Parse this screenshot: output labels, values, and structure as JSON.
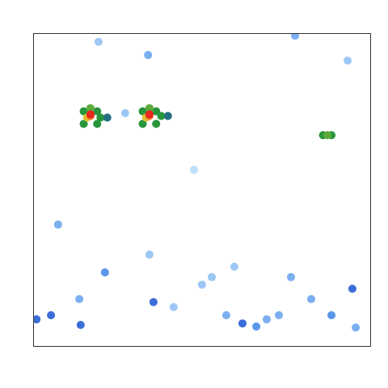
{
  "chart_data": {
    "type": "heatmap",
    "xlim": [
      0,
      100
    ],
    "ylim": [
      0,
      100
    ],
    "zlim": [
      0,
      1
    ],
    "tick_labels": false,
    "grid": false,
    "cells": {
      "x": [
        15,
        19,
        15,
        19,
        17,
        20,
        22,
        16,
        17,
        17,
        32.5,
        36.5,
        32.5,
        36.5,
        34.5,
        38,
        40,
        33.5,
        34.5,
        34.5,
        86,
        88.5,
        87.3,
        1.0,
        5.3,
        14.1,
        21.3,
        35.7,
        34.5,
        62.1,
        66.2,
        69.3,
        72.9,
        82.5,
        88.5,
        94.7,
        95.7,
        76.5,
        53.0,
        57.3,
        7.4,
        13.7,
        34.1,
        19.4,
        50.1,
        93.3,
        77.7,
        47.7,
        27.3,
        59.7,
        41.7
      ],
      "y": [
        71,
        71,
        75,
        75,
        76,
        73,
        73,
        73,
        73.5,
        74,
        71,
        71,
        75,
        75,
        76,
        73.5,
        73.5,
        73,
        73.5,
        74,
        67.4,
        67.4,
        67.4,
        8.5,
        9.8,
        6.7,
        23.5,
        14.0,
        29.2,
        7.2,
        6.2,
        8.5,
        9.8,
        15.0,
        9.8,
        18.3,
        5.9,
        22.0,
        22.0,
        9.8,
        38.8,
        15.0,
        93.0,
        97.2,
        19.6,
        91.2,
        99.2,
        56.3,
        74.4,
        25.3,
        12.4
      ],
      "values": [
        0.55,
        0.55,
        0.55,
        0.55,
        0.6,
        0.55,
        0.5,
        0.75,
        0.85,
        0.95,
        0.55,
        0.55,
        0.55,
        0.55,
        0.6,
        0.55,
        0.5,
        0.75,
        0.85,
        0.95,
        0.55,
        0.55,
        0.6,
        0.4,
        0.4,
        0.4,
        0.35,
        0.4,
        0.25,
        0.4,
        0.35,
        0.3,
        0.3,
        0.3,
        0.35,
        0.4,
        0.3,
        0.3,
        0.25,
        0.3,
        0.3,
        0.3,
        0.3,
        0.25,
        0.25,
        0.25,
        0.3,
        0.2,
        0.25,
        0.25,
        0.25
      ]
    }
  }
}
